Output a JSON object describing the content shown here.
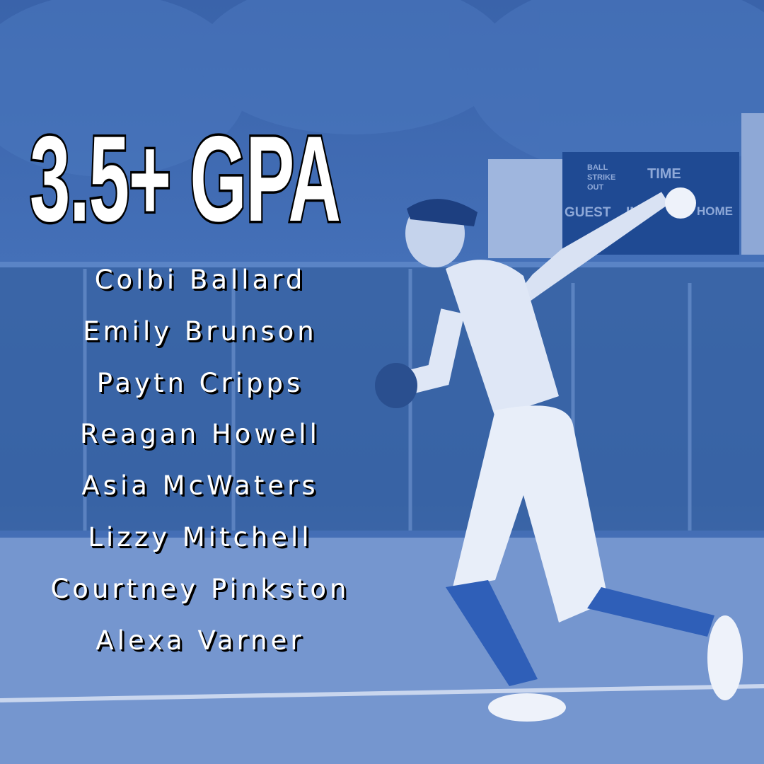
{
  "title": "3.5+ GPA",
  "names": [
    "Colbi Ballard",
    "Emily Brunson",
    "Paytn Cripps",
    "Reagan Howell",
    "Asia McWaters",
    "Lizzy Mitchell",
    "Courtney Pinkston",
    "Alexa Varner"
  ],
  "scoreboard": {
    "labels": [
      "BALL",
      "STRIKE",
      "OUT",
      "TIME",
      "GUEST",
      "INN",
      "HOME"
    ]
  },
  "colors": {
    "tint": "#3d68b2",
    "text": "#ffffff",
    "outline": "#000000"
  }
}
